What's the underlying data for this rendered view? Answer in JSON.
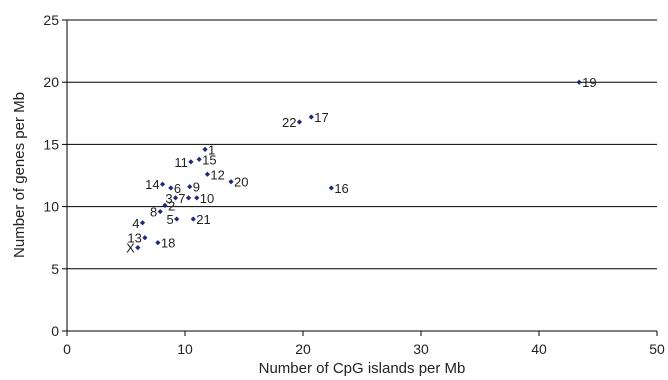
{
  "chart_data": {
    "type": "scatter",
    "title": "",
    "xlabel": "Number of CpG islands per Mb",
    "ylabel": "Number of genes per Mb",
    "xlim": [
      0,
      50
    ],
    "ylim": [
      0,
      25
    ],
    "x_ticks": [
      "0",
      "10",
      "20",
      "30",
      "40",
      "50"
    ],
    "y_ticks": [
      "0",
      "5",
      "10",
      "15",
      "20",
      "25"
    ],
    "grid": "horizontal",
    "marker_color": "#1f2a7a",
    "points": [
      {
        "label": "1",
        "x": 11.7,
        "y": 14.6,
        "label_side": "right"
      },
      {
        "label": "2",
        "x": 8.3,
        "y": 10.1,
        "label_side": "right"
      },
      {
        "label": "3",
        "x": 9.2,
        "y": 10.7,
        "label_side": "left"
      },
      {
        "label": "4",
        "x": 6.4,
        "y": 8.7,
        "label_side": "left"
      },
      {
        "label": "5",
        "x": 9.3,
        "y": 9.0,
        "label_side": "left"
      },
      {
        "label": "6",
        "x": 8.8,
        "y": 11.5,
        "label_side": "right"
      },
      {
        "label": "7",
        "x": 10.3,
        "y": 10.7,
        "label_side": "left"
      },
      {
        "label": "8",
        "x": 7.9,
        "y": 9.6,
        "label_side": "left"
      },
      {
        "label": "9",
        "x": 10.4,
        "y": 11.6,
        "label_side": "right"
      },
      {
        "label": "10",
        "x": 11.0,
        "y": 10.7,
        "label_side": "right"
      },
      {
        "label": "11",
        "x": 10.5,
        "y": 13.6,
        "label_side": "left"
      },
      {
        "label": "12",
        "x": 11.9,
        "y": 12.6,
        "label_side": "right"
      },
      {
        "label": "13",
        "x": 6.6,
        "y": 7.5,
        "label_side": "left"
      },
      {
        "label": "14",
        "x": 8.1,
        "y": 11.8,
        "label_side": "left"
      },
      {
        "label": "15",
        "x": 11.2,
        "y": 13.8,
        "label_side": "right"
      },
      {
        "label": "16",
        "x": 22.4,
        "y": 11.5,
        "label_side": "right"
      },
      {
        "label": "17",
        "x": 20.7,
        "y": 17.2,
        "label_side": "right"
      },
      {
        "label": "18",
        "x": 7.7,
        "y": 7.1,
        "label_side": "right"
      },
      {
        "label": "19",
        "x": 43.4,
        "y": 20.0,
        "label_side": "right"
      },
      {
        "label": "20",
        "x": 13.9,
        "y": 12.0,
        "label_side": "right"
      },
      {
        "label": "21",
        "x": 10.7,
        "y": 9.0,
        "label_side": "right"
      },
      {
        "label": "22",
        "x": 19.7,
        "y": 16.8,
        "label_side": "left"
      },
      {
        "label": "X",
        "x": 6.0,
        "y": 6.7,
        "label_side": "left"
      }
    ]
  }
}
